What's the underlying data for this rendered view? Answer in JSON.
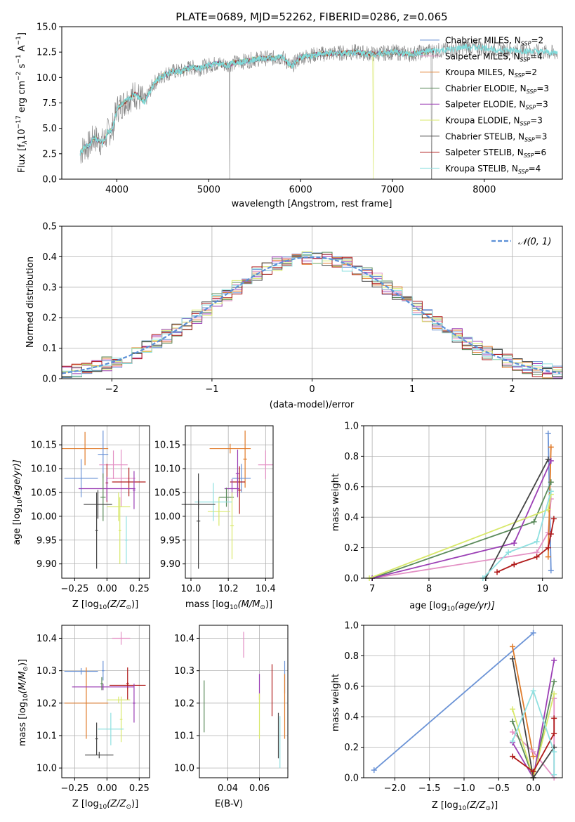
{
  "chart_data": [
    {
      "id": "spectrum",
      "type": "line",
      "title": "PLATE=0689, MJD=52262, FIBERID=0286, z=0.065",
      "xlabel": "wavelength [Angstrom, rest frame]",
      "ylabel": "Flux [f",
      "ylabel_sub": "λ",
      "ylabel_rest": "10",
      "ylabel_exp": "−17",
      "ylabel_units": " erg cm",
      "ylabel_units2": " s",
      "ylabel_units3": " A",
      "ylabel_end": "]",
      "xlim": [
        3400,
        8850
      ],
      "ylim": [
        0,
        15
      ],
      "xticks": [
        4000,
        5000,
        6000,
        7000,
        8000
      ],
      "yticks": [
        "0.0",
        "2.5",
        "5.0",
        "7.5",
        "10.0",
        "12.5",
        "15.0"
      ],
      "grid": false,
      "legend_placement": "top-right",
      "continuum": {
        "x": [
          3600,
          3650,
          3700,
          3750,
          3800,
          3850,
          3900,
          3950,
          4000,
          4100,
          4200,
          4300,
          4400,
          4500,
          4600,
          4700,
          4800,
          4900,
          5000,
          5100,
          5200,
          5300,
          5400,
          5500,
          5600,
          5700,
          5800,
          5900,
          6000,
          6200,
          6400,
          6600,
          6800,
          7000,
          7200,
          7400,
          7600,
          7800,
          8000,
          8200,
          8400,
          8600,
          8800
        ],
        "y": [
          2.6,
          3.2,
          3.3,
          4.1,
          3.8,
          3.6,
          4.6,
          4.9,
          6.9,
          7.7,
          8.4,
          7.6,
          9.4,
          10.2,
          10.6,
          10.6,
          11.0,
          10.9,
          11.2,
          11.4,
          11.2,
          11.5,
          11.6,
          11.8,
          11.9,
          11.9,
          12.0,
          11.1,
          12.0,
          12.3,
          12.4,
          12.5,
          12.3,
          12.5,
          12.3,
          12.6,
          12.7,
          13.0,
          12.9,
          12.7,
          12.6,
          12.5,
          12.4
        ]
      },
      "legend": [
        {
          "label": "Chabrier MILES, N",
          "sub": "SSP",
          "eq": "=2",
          "color": "#6b93d6"
        },
        {
          "label": "Salpeter MILES, N",
          "sub": "SSP",
          "eq": "=4",
          "color": "#e390c4"
        },
        {
          "label": "Kroupa MILES, N",
          "sub": "SSP",
          "eq": "=2",
          "color": "#e07b2a"
        },
        {
          "label": "Chabrier ELODIE, N",
          "sub": "SSP",
          "eq": "=3",
          "color": "#5a8a5a"
        },
        {
          "label": "Salpeter ELODIE, N",
          "sub": "SSP",
          "eq": "=3",
          "color": "#9b3fb5"
        },
        {
          "label": "Kroupa ELODIE, N",
          "sub": "SSP",
          "eq": "=3",
          "color": "#d8e86a"
        },
        {
          "label": "Chabrier STELIB, N",
          "sub": "SSP",
          "eq": "=3",
          "color": "#444444"
        },
        {
          "label": "Salpeter STELIB, N",
          "sub": "SSP",
          "eq": "=6",
          "color": "#b01a1a"
        },
        {
          "label": "Kroupa STELIB, N",
          "sub": "SSP",
          "eq": "=4",
          "color": "#8fe0e0"
        }
      ]
    },
    {
      "id": "residuals",
      "type": "line",
      "xlabel": "(data-model)/error",
      "ylabel": "Normed distribution",
      "xlim": [
        -2.5,
        2.5
      ],
      "ylim": [
        0,
        0.5
      ],
      "xticks": [
        "−2",
        "−1",
        "0",
        "1",
        "2"
      ],
      "xtick_values": [
        -2,
        -1,
        0,
        1,
        2
      ],
      "yticks": [
        "0.0",
        "0.1",
        "0.2",
        "0.3",
        "0.4",
        "0.5"
      ],
      "ytick_values": [
        0,
        0.1,
        0.2,
        0.3,
        0.4,
        0.5
      ],
      "grid": true,
      "legend_placement": "top-right",
      "gaussian_label": "𝒩(0, 1)",
      "gaussian_color": "#5b8fd6",
      "bin_width": 0.1
    },
    {
      "id": "age_vs_Z",
      "type": "scatter",
      "xlabel": "Z [log",
      "xlabel_sub": "10",
      "xlabel_rest": "(Z/Z",
      "xlabel_end": ")]",
      "ylabel": "age  [log",
      "ylabel_sub": "10",
      "ylabel_rest": "(age/yr)]",
      "xlim": [
        -0.35,
        0.33
      ],
      "ylim": [
        9.87,
        10.19
      ],
      "xticks": [
        "−0.25",
        "0.00",
        "0.25"
      ],
      "xtick_values": [
        -0.25,
        0,
        0.25
      ],
      "yticks": [
        "9.90",
        "9.95",
        "10.00",
        "10.05",
        "10.10",
        "10.15"
      ],
      "ytick_values": [
        9.9,
        9.95,
        10.0,
        10.05,
        10.1,
        10.15
      ],
      "grid": true,
      "points": [
        {
          "x": -0.17,
          "y": 10.142,
          "xerr": 0.18,
          "yerr": 0.035,
          "color": "#e07b2a"
        },
        {
          "x": -0.2,
          "y": 10.08,
          "xerr": 0.13,
          "yerr": 0.04,
          "color": "#6b93d6"
        },
        {
          "x": -0.03,
          "y": 10.13,
          "xerr": 0.04,
          "yerr": 0.05,
          "color": "#6b93d6"
        },
        {
          "x": 0.05,
          "y": 10.108,
          "xerr": 0.11,
          "yerr": 0.03,
          "color": "#e390c4"
        },
        {
          "x": 0.11,
          "y": 10.08,
          "xerr": 0.11,
          "yerr": 0.06,
          "color": "#e390c4"
        },
        {
          "x": 0.17,
          "y": 10.072,
          "xerr": 0.13,
          "yerr": 0.03,
          "color": "#b01a1a"
        },
        {
          "x": 0.0,
          "y": 10.07,
          "xerr": 0.01,
          "yerr": 0.04,
          "color": "#b01a1a"
        },
        {
          "x": 0.0,
          "y": 10.058,
          "xerr": 0.22,
          "yerr": 0.025,
          "color": "#9b3fb5"
        },
        {
          "x": 0.21,
          "y": 10.055,
          "xerr": 0.01,
          "yerr": 0.04,
          "color": "#9b3fb5"
        },
        {
          "x": -0.03,
          "y": 10.04,
          "xerr": 0.02,
          "yerr": 0.05,
          "color": "#5a8a5a"
        },
        {
          "x": 0.09,
          "y": 10.02,
          "xerr": 0.09,
          "yerr": 0.03,
          "color": "#d8e86a"
        },
        {
          "x": 0.1,
          "y": 9.97,
          "xerr": 0.01,
          "yerr": 0.07,
          "color": "#d8e86a"
        },
        {
          "x": 0.15,
          "y": 9.95,
          "xerr": 0.01,
          "yerr": 0.05,
          "color": "#8fe0e0"
        },
        {
          "x": -0.07,
          "y": 10.025,
          "xerr": 0.11,
          "yerr": 0.03,
          "color": "#444444"
        },
        {
          "x": -0.08,
          "y": 9.97,
          "xerr": 0.01,
          "yerr": 0.08,
          "color": "#444444"
        }
      ]
    },
    {
      "id": "age_vs_mass",
      "type": "scatter",
      "xlabel": "mass [log",
      "xlabel_sub": "10",
      "xlabel_rest": "(M/M",
      "xlabel_end": ")]",
      "xlim": [
        9.97,
        10.44
      ],
      "ylim": [
        9.87,
        10.19
      ],
      "xticks": [
        "10.0",
        "10.2",
        "10.4"
      ],
      "xtick_values": [
        10.0,
        10.2,
        10.4
      ],
      "yticks": [
        "9.90",
        "9.95",
        "10.00",
        "10.05",
        "10.10",
        "10.15"
      ],
      "ytick_values": [
        9.9,
        9.95,
        10.0,
        10.05,
        10.1,
        10.15
      ],
      "grid": true,
      "points": [
        {
          "x": 10.21,
          "y": 10.142,
          "xerr": 0.11,
          "yerr": 0.01,
          "color": "#e07b2a"
        },
        {
          "x": 10.29,
          "y": 10.12,
          "xerr": 0.01,
          "yerr": 0.06,
          "color": "#e07b2a"
        },
        {
          "x": 10.27,
          "y": 10.08,
          "xerr": 0.05,
          "yerr": 0.03,
          "color": "#6b93d6"
        },
        {
          "x": 10.4,
          "y": 10.108,
          "xerr": 0.04,
          "yerr": 0.03,
          "color": "#e390c4"
        },
        {
          "x": 10.25,
          "y": 10.072,
          "xerr": 0.04,
          "yerr": 0.02,
          "color": "#b01a1a"
        },
        {
          "x": 10.26,
          "y": 10.055,
          "xerr": 0.01,
          "yerr": 0.05,
          "color": "#b01a1a"
        },
        {
          "x": 10.22,
          "y": 10.058,
          "xerr": 0.04,
          "yerr": 0.02,
          "color": "#9b3fb5"
        },
        {
          "x": 10.25,
          "y": 10.09,
          "xerr": 0.01,
          "yerr": 0.05,
          "color": "#9b3fb5"
        },
        {
          "x": 10.19,
          "y": 10.04,
          "xerr": 0.04,
          "yerr": 0.02,
          "color": "#5a8a5a"
        },
        {
          "x": 10.15,
          "y": 10.01,
          "xerr": 0.06,
          "yerr": 0.03,
          "color": "#d8e86a"
        },
        {
          "x": 10.22,
          "y": 9.98,
          "xerr": 0.01,
          "yerr": 0.07,
          "color": "#d8e86a"
        },
        {
          "x": 10.12,
          "y": 10.03,
          "xerr": 0.1,
          "yerr": 0.04,
          "color": "#8fe0e0"
        },
        {
          "x": 10.04,
          "y": 10.025,
          "xerr": 0.09,
          "yerr": 0.01,
          "color": "#444444"
        },
        {
          "x": 10.04,
          "y": 9.99,
          "xerr": 0.01,
          "yerr": 0.1,
          "color": "#444444"
        }
      ]
    },
    {
      "id": "weight_vs_age",
      "type": "line",
      "xlabel": "age  [log",
      "xlabel_sub": "10",
      "xlabel_rest": "(age/yr)]",
      "ylabel": "mass weight",
      "xlim": [
        6.85,
        10.35
      ],
      "ylim": [
        0,
        1
      ],
      "xticks": [
        "7",
        "8",
        "9",
        "10"
      ],
      "xtick_values": [
        7,
        8,
        9,
        10
      ],
      "yticks": [
        "0.0",
        "0.2",
        "0.4",
        "0.6",
        "0.8",
        "1.0"
      ],
      "ytick_values": [
        0,
        0.2,
        0.4,
        0.6,
        0.8,
        1.0
      ],
      "grid": true,
      "series": [
        {
          "color": "#6b93d6",
          "x": [
            10.15,
            10.1
          ],
          "y": [
            0.05,
            0.95
          ]
        },
        {
          "color": "#e390c4",
          "x": [
            7.0,
            9.9,
            10.1,
            10.15
          ],
          "y": [
            0.0,
            0.17,
            0.3,
            0.52
          ]
        },
        {
          "color": "#e07b2a",
          "x": [
            10.1,
            10.15
          ],
          "y": [
            0.14,
            0.86
          ]
        },
        {
          "color": "#5a8a5a",
          "x": [
            7.0,
            9.85,
            10.15
          ],
          "y": [
            0.0,
            0.37,
            0.63
          ]
        },
        {
          "color": "#9b3fb5",
          "x": [
            7.0,
            9.5,
            10.15
          ],
          "y": [
            0.0,
            0.23,
            0.77
          ]
        },
        {
          "color": "#d8e86a",
          "x": [
            6.95,
            10.1,
            10.15
          ],
          "y": [
            0.0,
            0.45,
            0.55
          ]
        },
        {
          "color": "#444444",
          "x": [
            9.0,
            10.1
          ],
          "y": [
            0.0,
            0.78
          ]
        },
        {
          "color": "#b01a1a",
          "x": [
            9.2,
            9.5,
            9.9,
            10.1,
            10.15,
            10.2
          ],
          "y": [
            0.04,
            0.09,
            0.14,
            0.2,
            0.29,
            0.39
          ]
        },
        {
          "color": "#8fe0e0",
          "x": [
            8.95,
            9.4,
            9.9,
            10.15
          ],
          "y": [
            0.0,
            0.17,
            0.24,
            0.57
          ]
        }
      ]
    },
    {
      "id": "mass_vs_Z",
      "type": "scatter",
      "xlabel": "Z [log",
      "xlabel_sub": "10",
      "xlabel_rest": "(Z/Z",
      "xlabel_end": ")]",
      "ylabel": "mass [log",
      "ylabel_sub": "10",
      "ylabel_rest": "(M/M",
      "ylabel_end": ")]",
      "xlim": [
        -0.35,
        0.33
      ],
      "ylim": [
        9.97,
        10.44
      ],
      "xticks": [
        "−0.25",
        "0.00",
        "0.25"
      ],
      "xtick_values": [
        -0.25,
        0,
        0.25
      ],
      "yticks": [
        "10.0",
        "10.1",
        "10.2",
        "10.3",
        "10.4"
      ],
      "ytick_values": [
        10.0,
        10.1,
        10.2,
        10.3,
        10.4
      ],
      "grid": true,
      "points": [
        {
          "x": 0.11,
          "y": 10.4,
          "xerr": 0.07,
          "yerr": 0.02,
          "color": "#e390c4"
        },
        {
          "x": -0.2,
          "y": 10.298,
          "xerr": 0.13,
          "yerr": 0.01,
          "color": "#6b93d6"
        },
        {
          "x": -0.03,
          "y": 10.3,
          "xerr": 0.01,
          "yerr": 0.03,
          "color": "#6b93d6"
        },
        {
          "x": -0.16,
          "y": 10.2,
          "xerr": 0.17,
          "yerr": 0.11,
          "color": "#e07b2a"
        },
        {
          "x": 0.16,
          "y": 10.255,
          "xerr": 0.14,
          "yerr": 0.01,
          "color": "#b01a1a"
        },
        {
          "x": 0.16,
          "y": 10.26,
          "xerr": 0.01,
          "yerr": 0.05,
          "color": "#b01a1a"
        },
        {
          "x": -0.03,
          "y": 10.25,
          "xerr": 0.24,
          "yerr": 0.01,
          "color": "#9b3fb5"
        },
        {
          "x": 0.21,
          "y": 10.2,
          "xerr": 0.01,
          "yerr": 0.06,
          "color": "#9b3fb5"
        },
        {
          "x": -0.04,
          "y": 10.26,
          "xerr": 0.01,
          "yerr": 0.02,
          "color": "#5a8a5a"
        },
        {
          "x": 0.09,
          "y": 10.21,
          "xerr": 0.09,
          "yerr": 0.01,
          "color": "#d8e86a"
        },
        {
          "x": 0.11,
          "y": 10.15,
          "xerr": 0.01,
          "yerr": 0.07,
          "color": "#d8e86a"
        },
        {
          "x": 0.03,
          "y": 10.12,
          "xerr": 0.1,
          "yerr": 0.05,
          "color": "#8fe0e0"
        },
        {
          "x": -0.06,
          "y": 10.04,
          "xerr": 0.11,
          "yerr": 0.01,
          "color": "#444444"
        },
        {
          "x": -0.08,
          "y": 10.09,
          "xerr": 0.01,
          "yerr": 0.05,
          "color": "#444444"
        }
      ]
    },
    {
      "id": "mass_vs_ebv",
      "type": "scatter",
      "xlabel": "E(B-V)",
      "xlim": [
        0.022,
        0.078
      ],
      "ylim": [
        9.97,
        10.44
      ],
      "xticks": [
        "0.04",
        "0.06"
      ],
      "xtick_values": [
        0.04,
        0.06
      ],
      "yticks": [
        "10.0",
        "10.1",
        "10.2",
        "10.3",
        "10.4"
      ],
      "ytick_values": [
        10.0,
        10.1,
        10.2,
        10.3,
        10.4
      ],
      "grid": true,
      "points": [
        {
          "x": 0.05,
          "y": 10.38,
          "yerr": 0.04,
          "color": "#e390c4"
        },
        {
          "x": 0.076,
          "y": 10.28,
          "yerr": 0.05,
          "color": "#6b93d6"
        },
        {
          "x": 0.076,
          "y": 10.19,
          "yerr": 0.1,
          "color": "#e07b2a"
        },
        {
          "x": 0.068,
          "y": 10.24,
          "yerr": 0.08,
          "color": "#b01a1a"
        },
        {
          "x": 0.06,
          "y": 10.25,
          "yerr": 0.04,
          "color": "#9b3fb5"
        },
        {
          "x": 0.025,
          "y": 10.19,
          "yerr": 0.08,
          "color": "#5a8a5a"
        },
        {
          "x": 0.06,
          "y": 10.16,
          "yerr": 0.07,
          "color": "#d8e86a"
        },
        {
          "x": 0.072,
          "y": 10.1,
          "yerr": 0.07,
          "color": "#444444"
        },
        {
          "x": 0.073,
          "y": 10.08,
          "yerr": 0.08,
          "color": "#8fe0e0"
        }
      ]
    },
    {
      "id": "weight_vs_Z",
      "type": "line",
      "xlabel": "Z [log",
      "xlabel_sub": "10",
      "xlabel_rest": "(Z/Z",
      "xlabel_end": ")]",
      "ylabel": "mass weight",
      "xlim": [
        -2.45,
        0.42
      ],
      "ylim": [
        0,
        1
      ],
      "xticks": [
        "−2.0",
        "−1.5",
        "−1.0",
        "−0.5",
        "0.0"
      ],
      "xtick_values": [
        -2.0,
        -1.5,
        -1.0,
        -0.5,
        0.0
      ],
      "yticks": [
        "0.0",
        "0.2",
        "0.4",
        "0.6",
        "0.8",
        "1.0"
      ],
      "ytick_values": [
        0,
        0.2,
        0.4,
        0.6,
        0.8,
        1.0
      ],
      "grid": true,
      "series": [
        {
          "color": "#6b93d6",
          "x": [
            -2.3,
            0.0
          ],
          "y": [
            0.05,
            0.95
          ]
        },
        {
          "color": "#e07b2a",
          "x": [
            -0.3,
            0.0
          ],
          "y": [
            0.86,
            0.14
          ]
        },
        {
          "color": "#e390c4",
          "x": [
            -0.3,
            0.0,
            0.3,
            0.3
          ],
          "y": [
            0.3,
            0.17,
            0.0,
            0.52
          ]
        },
        {
          "color": "#5a8a5a",
          "x": [
            -0.3,
            0.0,
            0.3
          ],
          "y": [
            0.37,
            0.0,
            0.63
          ]
        },
        {
          "color": "#9b3fb5",
          "x": [
            -0.3,
            0.0,
            0.3
          ],
          "y": [
            0.23,
            0.0,
            0.77
          ]
        },
        {
          "color": "#d8e86a",
          "x": [
            -0.3,
            0.0,
            0.3
          ],
          "y": [
            0.45,
            0.0,
            0.55
          ]
        },
        {
          "color": "#444444",
          "x": [
            -0.3,
            0.0,
            0.3
          ],
          "y": [
            0.78,
            0.0,
            0.2
          ]
        },
        {
          "color": "#b01a1a",
          "x": [
            -0.3,
            0.0,
            0.3,
            0.3
          ],
          "y": [
            0.14,
            0.04,
            0.29,
            0.39
          ]
        },
        {
          "color": "#8fe0e0",
          "x": [
            -0.3,
            0.0,
            0.3,
            0.3
          ],
          "y": [
            0.24,
            0.57,
            0.17,
            0.02
          ]
        }
      ]
    }
  ]
}
